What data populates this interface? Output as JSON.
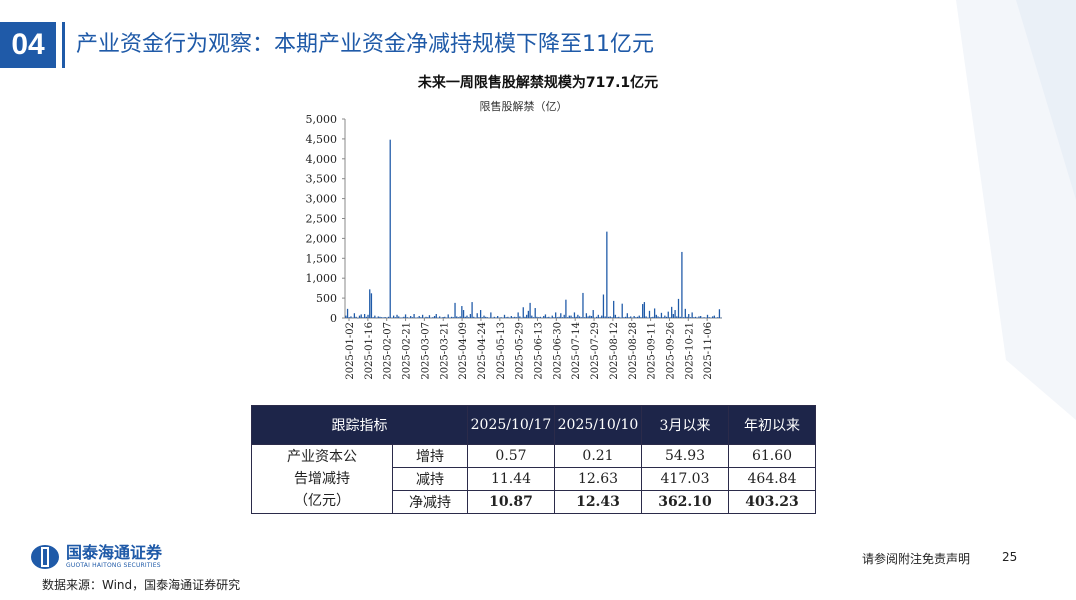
{
  "section": {
    "number": "04",
    "title": "产业资金行为观察：本期产业资金净减持规模下降至11亿元"
  },
  "chart_data": {
    "type": "bar",
    "title": "未来一周限售股解禁规模为717.1亿元",
    "legend": "限售股解禁（亿）",
    "ylim": [
      0,
      5000
    ],
    "yticks": [
      "0",
      "500",
      "1,000",
      "1,500",
      "2,000",
      "2,500",
      "3,000",
      "3,500",
      "4,000",
      "4,500",
      "5,000"
    ],
    "xticks": [
      "2025-01-02",
      "2025-01-16",
      "2025-02-07",
      "2025-02-21",
      "2025-03-07",
      "2025-03-21",
      "2025-04-09",
      "2025-04-24",
      "2025-05-13",
      "2025-05-29",
      "2025-06-13",
      "2025-06-30",
      "2025-07-14",
      "2025-07-29",
      "2025-08-12",
      "2025-08-28",
      "2025-09-11",
      "2025-09-26",
      "2025-10-21",
      "2025-11-06"
    ],
    "color": "#1f5aa8",
    "values": [
      60,
      230,
      20,
      40,
      10,
      120,
      30,
      0,
      60,
      90,
      20,
      100,
      30,
      80,
      720,
      620,
      20,
      60,
      10,
      40,
      30,
      20,
      15,
      25,
      10,
      30,
      4480,
      10,
      60,
      20,
      80,
      40,
      10,
      15,
      30,
      90,
      20,
      10,
      50,
      20,
      100,
      10,
      15,
      50,
      20,
      80,
      10,
      30,
      20,
      70,
      10,
      20,
      50,
      100,
      10,
      40,
      10,
      25,
      30,
      10,
      90,
      10,
      30,
      20,
      380,
      40,
      20,
      40,
      300,
      200,
      30,
      60,
      20,
      100,
      400,
      30,
      10,
      120,
      20,
      200,
      20,
      60,
      30,
      20,
      10,
      140,
      10,
      30,
      15,
      50,
      10,
      20,
      10,
      80,
      20,
      30,
      10,
      50,
      20,
      30,
      20,
      140,
      40,
      10,
      270,
      30,
      80,
      180,
      380,
      60,
      20,
      250,
      30,
      20,
      30,
      10,
      50,
      90,
      20,
      30,
      10,
      60,
      20,
      140,
      20,
      30,
      120,
      20,
      80,
      460,
      20,
      60,
      60,
      20,
      140,
      30,
      80,
      40,
      20,
      630,
      20,
      120,
      40,
      60,
      50,
      200,
      10,
      30,
      80,
      20,
      60,
      590,
      40,
      2170,
      30,
      40,
      20,
      430,
      80,
      20,
      30,
      10,
      360,
      20,
      30,
      120,
      20,
      40,
      10,
      50,
      20,
      30,
      60,
      20,
      350,
      400,
      40,
      10,
      180,
      20,
      30,
      240,
      80,
      40,
      20,
      130,
      20,
      60,
      30,
      160,
      20,
      280,
      100,
      200,
      40,
      480,
      30,
      1660,
      20,
      230,
      30,
      100,
      20,
      140,
      20,
      30,
      10,
      40,
      50,
      10,
      20,
      10,
      80,
      20,
      10,
      40,
      60,
      10,
      20,
      220,
      10
    ]
  },
  "table": {
    "headers": [
      "跟踪指标",
      "2025/10/17",
      "2025/10/10",
      "3月以来",
      "年初以来"
    ],
    "group_label": "产业资本公告增减持（亿元）",
    "rows": [
      {
        "label": "增持",
        "vals": [
          "0.57",
          "0.21",
          "54.93",
          "61.60"
        ]
      },
      {
        "label": "减持",
        "vals": [
          "11.44",
          "12.63",
          "417.03",
          "464.84"
        ]
      },
      {
        "label": "净减持",
        "vals": [
          "10.87",
          "12.43",
          "362.10",
          "403.23"
        ]
      }
    ]
  },
  "footer": {
    "logo_cn": "国泰海通证券",
    "logo_en": "GUOTAI HAITONG SECURITIES",
    "source": "数据来源：Wind，国泰海通证券研究",
    "disclaimer": "请参阅附注免责声明",
    "page": "25"
  }
}
